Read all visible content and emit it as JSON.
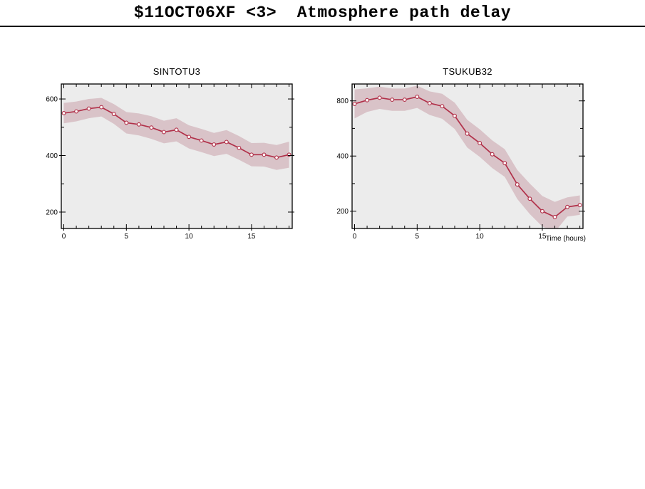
{
  "header": {
    "title": "$11OCT06XF <3>  Atmosphere path delay"
  },
  "colors": {
    "line": "#b13049",
    "band": "#d9c3c8",
    "plot_bg": "#ececec",
    "frame": "#000000",
    "marker_fill": "#fdf6f6"
  },
  "charts": [
    {
      "title": "SINTOTU3",
      "chart_data": {
        "type": "line",
        "x": [
          0,
          1,
          2,
          3,
          4,
          5,
          6,
          7,
          8,
          9,
          10,
          11,
          12,
          13,
          14,
          15,
          16,
          17,
          18
        ],
        "series": [
          {
            "name": "atmosphere path delay",
            "values": [
              550,
              556,
              566,
              571,
              547,
              516,
              510,
              499,
              483,
              491,
              466,
              453,
              439,
              448,
              427,
              403,
              403,
              393,
              403
            ]
          }
        ],
        "band_upper": [
          586,
          591,
          600,
          604,
          582,
          554,
          549,
          539,
          523,
          532,
          507,
          494,
          480,
          490,
          469,
          444,
          445,
          437,
          449
        ],
        "band_lower": [
          514,
          521,
          532,
          538,
          512,
          478,
          471,
          459,
          443,
          450,
          425,
          412,
          398,
          406,
          385,
          362,
          361,
          349,
          357
        ],
        "yscale": "linear",
        "yticks": [
          200,
          400,
          600
        ],
        "yminor": [
          300,
          500
        ],
        "xticks": [
          0,
          5,
          10,
          15
        ],
        "xlim": [
          -0.2,
          18.25
        ],
        "ylim": [
          142,
          653
        ],
        "xlabel": "",
        "marker": "open-circle",
        "grid": "off",
        "legend": "none"
      }
    },
    {
      "title": "TSUKUB32",
      "chart_data": {
        "type": "line",
        "x": [
          0,
          1,
          2,
          3,
          4,
          5,
          6,
          7,
          8,
          9,
          10,
          11,
          12,
          13,
          14,
          15,
          16,
          17,
          18
        ],
        "series": [
          {
            "name": "atmosphere path delay",
            "values": [
              770,
              807,
              832,
              812,
              812,
              842,
              777,
              748,
              663,
              530,
              471,
              409,
              366,
              280,
              234,
              200,
              186,
              211,
              216
            ]
          }
        ],
        "band_upper": [
          924,
          936,
          957,
          934,
          934,
          968,
          901,
          875,
          782,
          631,
          560,
          487,
          436,
          336,
          283,
          242,
          225,
          238,
          244
        ],
        "band_lower": [
          642,
          696,
          723,
          706,
          706,
          732,
          670,
          639,
          562,
          445,
          396,
          344,
          308,
          233,
          193,
          165,
          154,
          187,
          191
        ],
        "yscale": "log2",
        "yticks": [
          200,
          400,
          800
        ],
        "yminor": [
          283,
          566
        ],
        "xticks": [
          0,
          5,
          10,
          15
        ],
        "xlim": [
          -0.2,
          18.25
        ],
        "ylim": [
          161,
          989
        ],
        "xlabel": "Time (hours)",
        "marker": "open-circle",
        "grid": "off",
        "legend": "none"
      }
    }
  ]
}
